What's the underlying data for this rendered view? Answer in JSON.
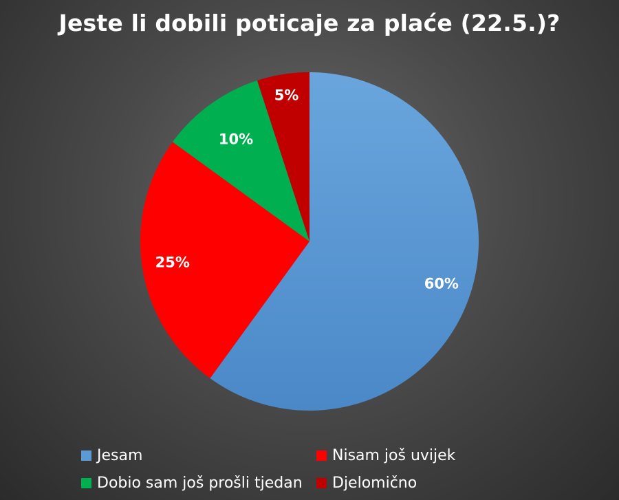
{
  "chart_data": {
    "type": "pie",
    "title": "Jeste li dobili poticaje za plaće (22.5.)?",
    "slices": [
      {
        "name": "Jesam",
        "value": 60,
        "label": "60%",
        "color": "#5b9bd5"
      },
      {
        "name": "Nisam još uvijek",
        "value": 25,
        "label": "25%",
        "color": "#ff0000"
      },
      {
        "name": "Dobio sam još prošli tjedan",
        "value": 10,
        "label": "10%",
        "color": "#00b050"
      },
      {
        "name": "Djelomično",
        "value": 5,
        "label": "5%",
        "color": "#c00000"
      }
    ],
    "legend_position": "bottom"
  }
}
